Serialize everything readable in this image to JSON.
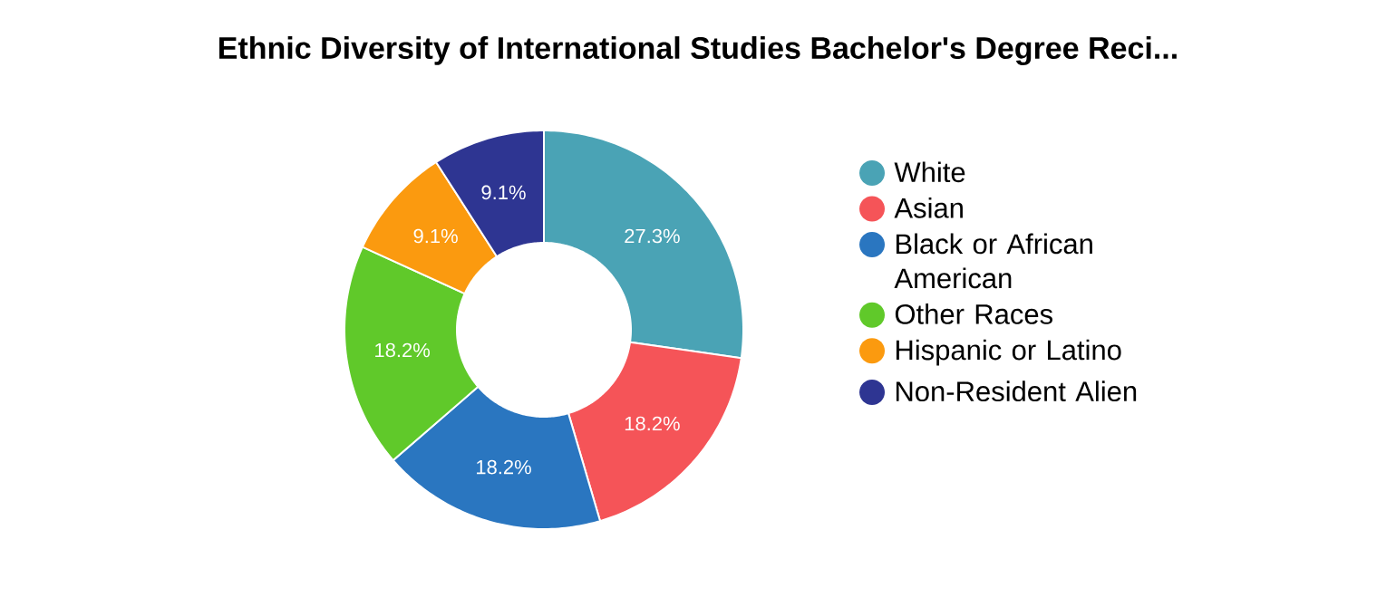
{
  "chart_data": {
    "type": "donut",
    "title": "Ethnic Diversity of International Studies Bachelor's Degree Reci...",
    "categories": [
      "White",
      "Asian",
      "Black or African American",
      "Other Races",
      "Hispanic or Latino",
      "Non-Resident Alien"
    ],
    "values": [
      27.3,
      18.2,
      18.2,
      18.2,
      9.1,
      9.1
    ],
    "value_labels": [
      "27.3%",
      "18.2%",
      "18.2%",
      "18.2%",
      "9.1%",
      "9.1%"
    ],
    "colors": [
      "#4aa3b5",
      "#f55458",
      "#2a76c0",
      "#60c92a",
      "#fb9a0f",
      "#2e3592"
    ],
    "legend": "right"
  }
}
